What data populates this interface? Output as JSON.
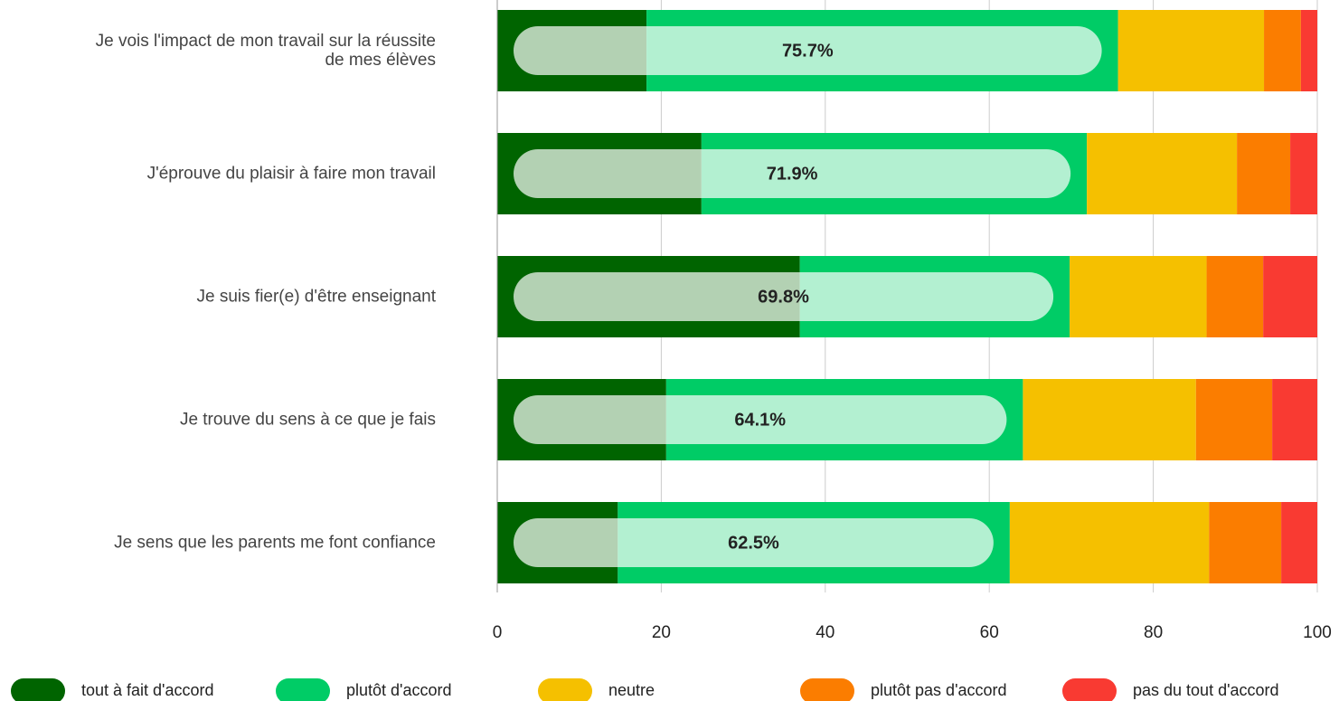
{
  "chart_data": {
    "type": "stacked_bar_horizontal",
    "categories": [
      "Je vois l'impact de mon travail sur la réussite de mes élèves",
      "J'éprouve du plaisir à faire mon travail",
      "Je suis fier(e) d'être enseignant",
      "Je trouve du sens à ce que je fais",
      "Je sens que les parents me font confiance"
    ],
    "series": [
      {
        "name": "tout à fait d'accord",
        "color": "#006400",
        "values": [
          18.2,
          24.9,
          36.9,
          20.6,
          14.7
        ]
      },
      {
        "name": "plutôt d'accord",
        "color": "#00cc66",
        "values": [
          57.5,
          47.0,
          32.9,
          43.5,
          47.8
        ]
      },
      {
        "name": "neutre",
        "color": "#f5c000",
        "values": [
          17.8,
          18.3,
          16.7,
          21.1,
          24.3
        ]
      },
      {
        "name": "plutôt pas d'accord",
        "color": "#fb7d00",
        "values": [
          4.5,
          6.5,
          6.9,
          9.3,
          8.8
        ]
      },
      {
        "name": "pas du tout d'accord",
        "color": "#f93a32",
        "values": [
          2.0,
          3.3,
          6.6,
          5.5,
          4.4
        ]
      }
    ],
    "totals": {
      "values": [
        75.7,
        71.9,
        69.8,
        64.1,
        62.5
      ],
      "value_labels": [
        "75.7%",
        "71.9%",
        "69.8%",
        "64.1%",
        "62.5%"
      ]
    },
    "xlim": [
      0,
      100
    ],
    "xticks": [
      0,
      20,
      40,
      60,
      80,
      100
    ],
    "grid": true
  }
}
